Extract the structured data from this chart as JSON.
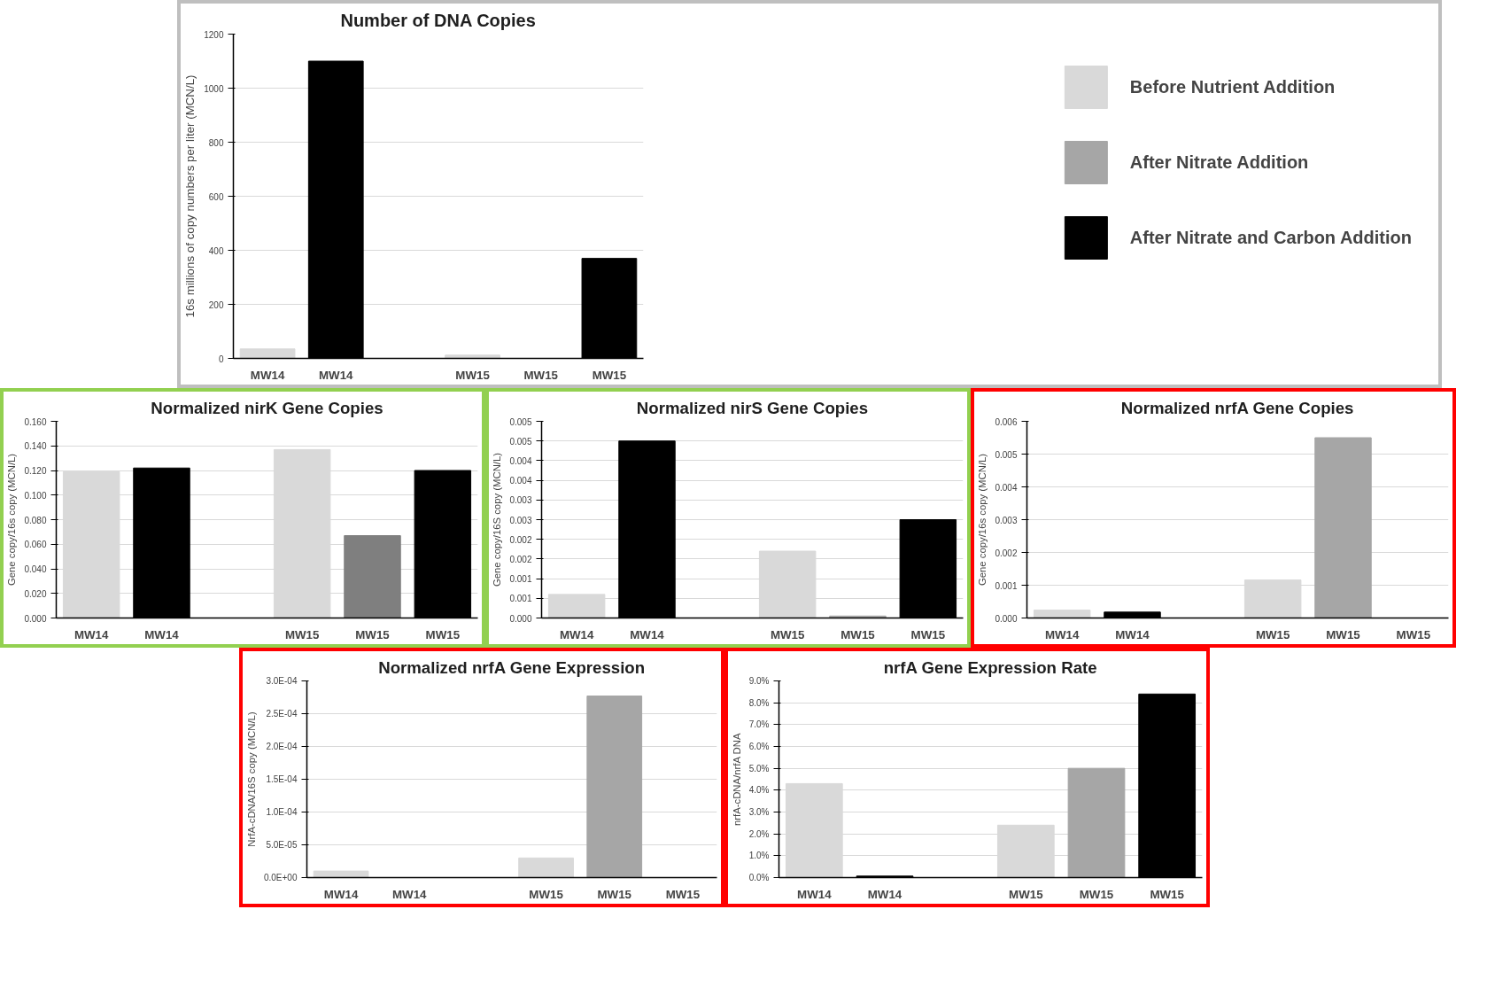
{
  "chart_data": [
    {
      "type": "bar",
      "title": "Number of DNA Copies",
      "ylabel": "16s millions of copy numbers per liter (MCN/L)",
      "categories": [
        "MW14",
        "MW14",
        null,
        "MW15",
        "MW15",
        "MW15"
      ],
      "series": [
        {
          "name": "Before Nutrient Addition",
          "color": "#d9d9d9",
          "values": [
            35,
            null,
            null,
            12,
            null,
            null
          ]
        },
        {
          "name": "After Nitrate Addition",
          "color": "#a6a6a6",
          "values": [
            null,
            null,
            null,
            null,
            0,
            null
          ]
        },
        {
          "name": "After Nitrate and Carbon Addition",
          "color": "#000000",
          "values": [
            null,
            1100,
            null,
            null,
            null,
            370
          ]
        }
      ],
      "ylim": [
        0,
        1200
      ],
      "yticks": [
        0,
        200,
        400,
        600,
        800,
        1000,
        1200
      ],
      "grid": "y",
      "legend": "right"
    },
    {
      "type": "bar",
      "title": "Normalized nirK Gene Copies",
      "ylabel": "Gene copy/16s copy (MCN/L)",
      "categories": [
        "MW14",
        "MW14",
        null,
        "MW15",
        "MW15",
        "MW15"
      ],
      "series": [
        {
          "color": "#d9d9d9",
          "values": [
            0.119,
            null,
            null,
            0.137,
            null,
            null
          ]
        },
        {
          "color": "#7f7f7f",
          "values": [
            null,
            null,
            null,
            null,
            0.067,
            null
          ]
        },
        {
          "color": "#000000",
          "values": [
            null,
            0.122,
            null,
            null,
            null,
            0.12
          ]
        }
      ],
      "ylim": [
        0,
        0.16
      ],
      "yticks": [
        {
          "value": 0,
          "label": "0.000"
        },
        {
          "value": 0.02,
          "label": "0.020"
        },
        {
          "value": 0.04,
          "label": "0.040"
        },
        {
          "value": 0.06,
          "label": "0.060"
        },
        {
          "value": 0.08,
          "label": "0.080"
        },
        {
          "value": 0.1,
          "label": "0.100"
        },
        {
          "value": 0.12,
          "label": "0.120"
        },
        {
          "value": 0.14,
          "label": "0.140"
        },
        {
          "value": 0.16,
          "label": "0.160"
        }
      ],
      "grid": "y"
    },
    {
      "type": "bar",
      "title": "Normalized nirS Gene Copies",
      "ylabel": "Gene copy/16S copy (MCN/L)",
      "categories": [
        "MW14",
        "MW14",
        null,
        "MW15",
        "MW15",
        "MW15"
      ],
      "series": [
        {
          "color": "#d9d9d9",
          "values": [
            0.0006,
            null,
            null,
            0.0017,
            null,
            null
          ]
        },
        {
          "color": "#a6a6a6",
          "values": [
            null,
            null,
            null,
            null,
            5e-05,
            null
          ]
        },
        {
          "color": "#000000",
          "values": [
            null,
            0.0045,
            null,
            null,
            null,
            0.0025
          ]
        }
      ],
      "ylim": [
        0,
        0.005
      ],
      "yticks": [
        {
          "value": 0,
          "label": "0.000"
        },
        {
          "value": 0.0005,
          "label": "0.001"
        },
        {
          "value": 0.001,
          "label": "0.001"
        },
        {
          "value": 0.0015,
          "label": "0.002"
        },
        {
          "value": 0.002,
          "label": "0.002"
        },
        {
          "value": 0.0025,
          "label": "0.003"
        },
        {
          "value": 0.003,
          "label": "0.003"
        },
        {
          "value": 0.0035,
          "label": "0.004"
        },
        {
          "value": 0.004,
          "label": "0.004"
        },
        {
          "value": 0.0045,
          "label": "0.005"
        },
        {
          "value": 0.005,
          "label": "0.005"
        }
      ],
      "grid": "y"
    },
    {
      "type": "bar",
      "title": "Normalized nrfA Gene Copies",
      "ylabel": "Gene copy/16s copy (MCN/L)",
      "categories": [
        "MW14",
        "MW14",
        null,
        "MW15",
        "MW15",
        "MW15"
      ],
      "series": [
        {
          "color": "#d9d9d9",
          "values": [
            0.00024,
            null,
            null,
            0.00116,
            null,
            null
          ]
        },
        {
          "color": "#a6a6a6",
          "values": [
            null,
            null,
            null,
            null,
            0.0055,
            null
          ]
        },
        {
          "color": "#000000",
          "values": [
            null,
            0.00018,
            null,
            null,
            null,
            null
          ]
        }
      ],
      "ylim": [
        0,
        0.006
      ],
      "yticks": [
        {
          "value": 0,
          "label": "0.000"
        },
        {
          "value": 0.001,
          "label": "0.001"
        },
        {
          "value": 0.002,
          "label": "0.002"
        },
        {
          "value": 0.003,
          "label": "0.003"
        },
        {
          "value": 0.004,
          "label": "0.004"
        },
        {
          "value": 0.005,
          "label": "0.005"
        },
        {
          "value": 0.006,
          "label": "0.006"
        }
      ],
      "grid": "y"
    },
    {
      "type": "bar",
      "title": "Normalized nrfA Gene Expression",
      "ylabel": "NrfA-cDNA/16S copy (MCN/L)",
      "categories": [
        "MW14",
        "MW14",
        null,
        "MW15",
        "MW15",
        "MW15"
      ],
      "series": [
        {
          "color": "#d9d9d9",
          "values": [
            1e-05,
            null,
            null,
            3e-05,
            null,
            null
          ]
        },
        {
          "color": "#a6a6a6",
          "values": [
            null,
            null,
            null,
            null,
            0.000277,
            null
          ]
        },
        {
          "color": "#000000",
          "values": [
            null,
            0,
            null,
            null,
            null,
            0
          ]
        }
      ],
      "ylim": [
        0,
        0.0003
      ],
      "yticks": [
        {
          "value": 0,
          "label": "0.0E+00"
        },
        {
          "value": 5e-05,
          "label": "5.0E-05"
        },
        {
          "value": 0.0001,
          "label": "1.0E-04"
        },
        {
          "value": 0.00015,
          "label": "1.5E-04"
        },
        {
          "value": 0.0002,
          "label": "2.0E-04"
        },
        {
          "value": 0.00025,
          "label": "2.5E-04"
        },
        {
          "value": 0.0003,
          "label": "3.0E-04"
        }
      ],
      "grid": "y"
    },
    {
      "type": "bar",
      "title": "nrfA Gene Expression Rate",
      "ylabel": "nrfA-cDNA/nrfA DNA",
      "categories": [
        "MW14",
        "MW14",
        null,
        "MW15",
        "MW15",
        "MW15"
      ],
      "series": [
        {
          "color": "#d9d9d9",
          "values": [
            4.3,
            null,
            null,
            2.4,
            null,
            null
          ]
        },
        {
          "color": "#a6a6a6",
          "values": [
            null,
            null,
            null,
            null,
            5.0,
            null
          ]
        },
        {
          "color": "#000000",
          "values": [
            null,
            0.07,
            null,
            null,
            null,
            8.4
          ]
        }
      ],
      "ylim": [
        0,
        9
      ],
      "yticks": [
        {
          "value": 0,
          "label": "0.0%"
        },
        {
          "value": 1,
          "label": "1.0%"
        },
        {
          "value": 2,
          "label": "2.0%"
        },
        {
          "value": 3,
          "label": "3.0%"
        },
        {
          "value": 4,
          "label": "4.0%"
        },
        {
          "value": 5,
          "label": "5.0%"
        },
        {
          "value": 6,
          "label": "6.0%"
        },
        {
          "value": 7,
          "label": "7.0%"
        },
        {
          "value": 8,
          "label": "8.0%"
        },
        {
          "value": 9,
          "label": "9.0%"
        }
      ],
      "grid": "y"
    }
  ]
}
